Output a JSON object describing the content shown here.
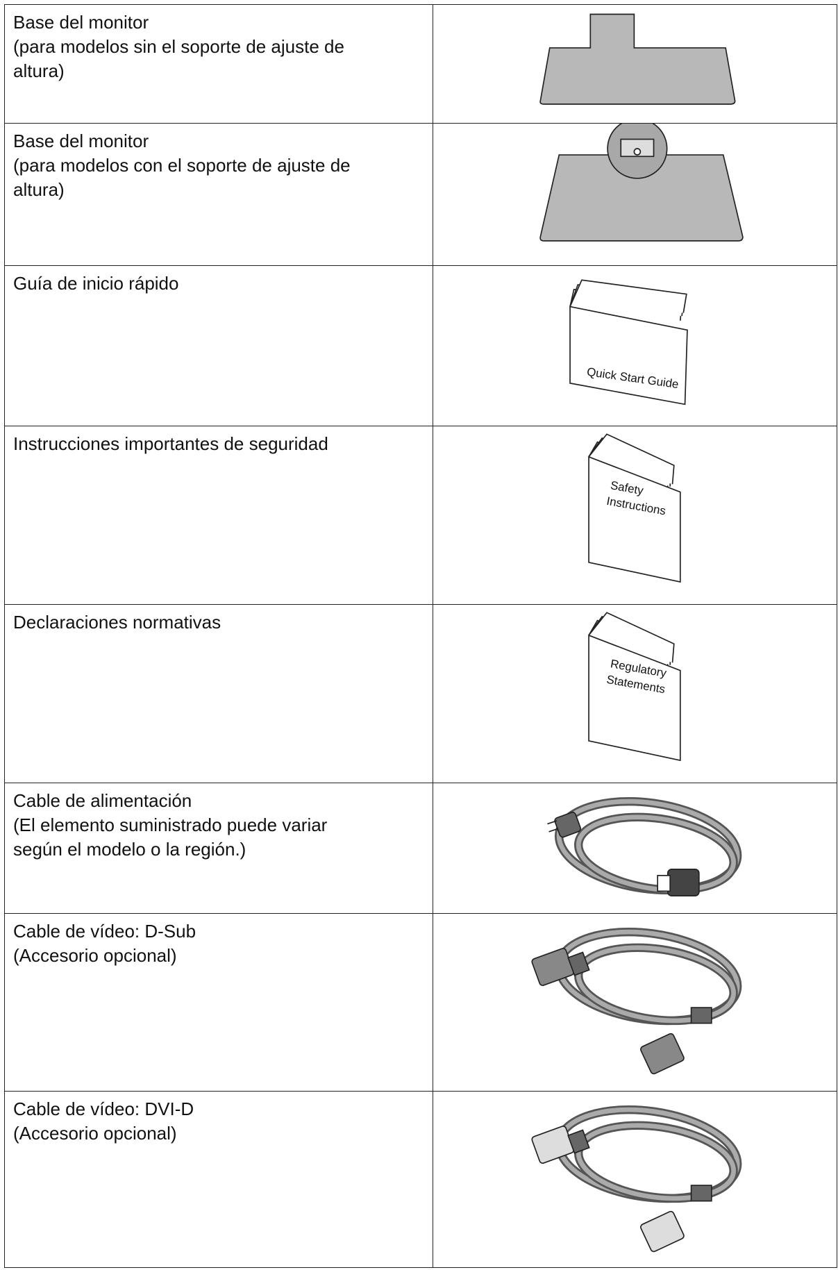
{
  "table": {
    "rows": [
      {
        "text": [
          "Base del monitor",
          "(para modelos sin el soporte de ajuste de",
          "altura)"
        ]
      },
      {
        "text": [
          "Base del monitor",
          "(para modelos con el soporte de ajuste de",
          "altura)"
        ]
      },
      {
        "text": [
          "Guía de inicio rápido"
        ],
        "image_label": [
          "Quick Start Guide"
        ]
      },
      {
        "text": [
          "Instrucciones importantes de seguridad"
        ],
        "image_label": [
          "Safety",
          "Instructions"
        ]
      },
      {
        "text": [
          "Declaraciones normativas"
        ],
        "image_label": [
          "Regulatory",
          "Statements"
        ]
      },
      {
        "text": [
          "Cable de alimentación",
          "(El elemento suministrado puede variar",
          "según el modelo o la región.)"
        ]
      },
      {
        "text": [
          "Cable de vídeo: D-Sub",
          "(Accesorio opcional)"
        ]
      },
      {
        "text": [
          "Cable de vídeo: DVI-D",
          "(Accesorio opcional)"
        ]
      }
    ]
  }
}
